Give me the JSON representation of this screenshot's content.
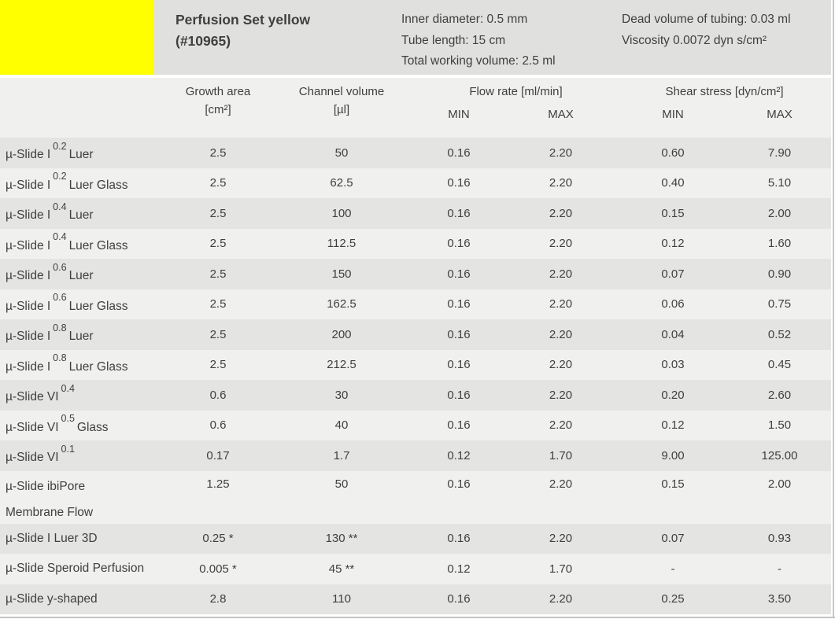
{
  "header": {
    "swatch_color": "#ffff00",
    "title_line1": "Perfusion Set yellow",
    "title_line2": "(#10965)",
    "specs_col1": [
      "Inner diameter: 0.5 mm",
      "Tube length: 15 cm",
      "Total working volume: 2.5 ml"
    ],
    "specs_col2": [
      "Dead volume of tubing: 0.03 ml",
      "Viscosity 0.0072 dyn s/cm²"
    ]
  },
  "table": {
    "columns": {
      "growth_area": {
        "line1": "Growth area",
        "line2": "[cm²]"
      },
      "channel_volume": {
        "line1": "Channel volume",
        "line2": "[µl]"
      },
      "flow_rate": {
        "label": "Flow rate [ml/min]",
        "min": "MIN",
        "max": "MAX"
      },
      "shear_stress": {
        "label": "Shear stress [dyn/cm²]",
        "min": "MIN",
        "max": "MAX"
      }
    },
    "rows": [
      {
        "pre": "µ-Slide I",
        "sup": "0.2",
        "post": "Luer",
        "line2": "",
        "growth": "2.5",
        "volume": "50",
        "flow_min": "0.16",
        "flow_max": "2.20",
        "shear_min": "0.60",
        "shear_max": "7.90"
      },
      {
        "pre": "µ-Slide I",
        "sup": "0.2",
        "post": "Luer Glass",
        "line2": "",
        "growth": "2.5",
        "volume": "62.5",
        "flow_min": "0.16",
        "flow_max": "2.20",
        "shear_min": "0.40",
        "shear_max": "5.10"
      },
      {
        "pre": "µ-Slide I",
        "sup": "0.4",
        "post": "Luer",
        "line2": "",
        "growth": "2.5",
        "volume": "100",
        "flow_min": "0.16",
        "flow_max": "2.20",
        "shear_min": "0.15",
        "shear_max": "2.00"
      },
      {
        "pre": "µ-Slide I",
        "sup": "0.4",
        "post": "Luer Glass",
        "line2": "",
        "growth": "2.5",
        "volume": "112.5",
        "flow_min": "0.16",
        "flow_max": "2.20",
        "shear_min": "0.12",
        "shear_max": "1.60"
      },
      {
        "pre": "µ-Slide I",
        "sup": "0.6",
        "post": "Luer",
        "line2": "",
        "growth": "2.5",
        "volume": "150",
        "flow_min": "0.16",
        "flow_max": "2.20",
        "shear_min": "0.07",
        "shear_max": "0.90"
      },
      {
        "pre": "µ-Slide I",
        "sup": "0.6",
        "post": "Luer Glass",
        "line2": "",
        "growth": "2.5",
        "volume": "162.5",
        "flow_min": "0.16",
        "flow_max": "2.20",
        "shear_min": "0.06",
        "shear_max": "0.75"
      },
      {
        "pre": "µ-Slide I",
        "sup": "0.8",
        "post": "Luer",
        "line2": "",
        "growth": "2.5",
        "volume": "200",
        "flow_min": "0.16",
        "flow_max": "2.20",
        "shear_min": "0.04",
        "shear_max": "0.52"
      },
      {
        "pre": "µ-Slide I",
        "sup": "0.8",
        "post": "Luer Glass",
        "line2": "",
        "growth": "2.5",
        "volume": "212.5",
        "flow_min": "0.16",
        "flow_max": "2.20",
        "shear_min": "0.03",
        "shear_max": "0.45"
      },
      {
        "pre": "µ-Slide VI",
        "sup": "0.4",
        "post": "",
        "line2": "",
        "growth": "0.6",
        "volume": "30",
        "flow_min": "0.16",
        "flow_max": "2.20",
        "shear_min": "0.20",
        "shear_max": "2.60"
      },
      {
        "pre": "µ-Slide VI",
        "sup": "0.5",
        "post": "Glass",
        "line2": "",
        "growth": "0.6",
        "volume": "40",
        "flow_min": "0.16",
        "flow_max": "2.20",
        "shear_min": "0.12",
        "shear_max": "1.50"
      },
      {
        "pre": "µ-Slide VI",
        "sup": "0.1",
        "post": "",
        "line2": "",
        "growth": "0.17",
        "volume": "1.7",
        "flow_min": "0.12",
        "flow_max": "1.70",
        "shear_min": "9.00",
        "shear_max": "125.00"
      },
      {
        "pre": "µ-Slide ibiPore",
        "sup": "",
        "post": "",
        "line2": "Membrane Flow",
        "growth": "1.25",
        "volume": "50",
        "flow_min": "0.16",
        "flow_max": "2.20",
        "shear_min": "0.15",
        "shear_max": "2.00"
      },
      {
        "pre": "µ-Slide I Luer 3D",
        "sup": "",
        "post": "",
        "line2": "",
        "growth": "0.25 *",
        "volume": "130 **",
        "flow_min": "0.16",
        "flow_max": "2.20",
        "shear_min": "0.07",
        "shear_max": "0.93"
      },
      {
        "pre": "µ-Slide Speroid Perfusion",
        "sup": "",
        "post": "",
        "line2": "",
        "growth": "0.005 *",
        "volume": "45 **",
        "flow_min": "0.12",
        "flow_max": "1.70",
        "shear_min": "-",
        "shear_max": "-"
      },
      {
        "pre": "µ-Slide y-shaped",
        "sup": "",
        "post": "",
        "line2": "",
        "growth": "2.8",
        "volume": "110",
        "flow_min": "0.16",
        "flow_max": "2.20",
        "shear_min": "0.25",
        "shear_max": "3.50"
      }
    ]
  }
}
